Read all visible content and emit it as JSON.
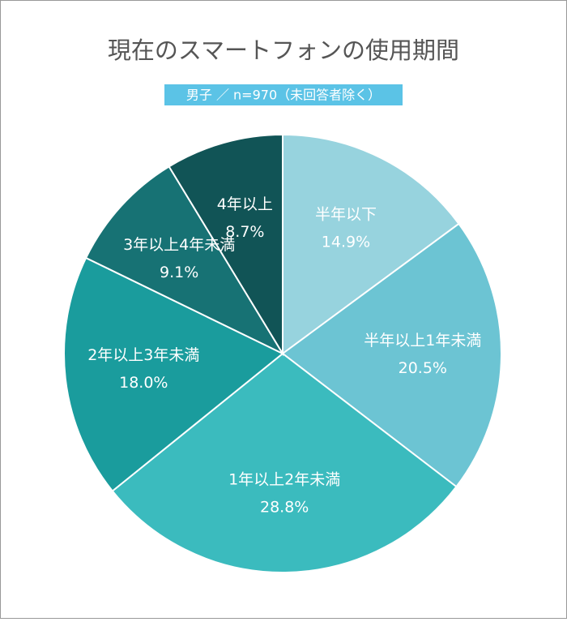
{
  "chart_data": {
    "type": "pie",
    "title": "現在のスマートフォンの使用期間",
    "subtitle": "男子 ／ n=970（未回答者除く）",
    "categories": [
      "半年以下",
      "半年以上1年未満",
      "1年以上2年未満",
      "2年以上3年未満",
      "3年以上4年未満",
      "4年以上"
    ],
    "values": [
      14.9,
      20.5,
      28.8,
      18.0,
      9.1,
      8.7
    ],
    "value_labels": [
      "14.9%",
      "20.5%",
      "28.8%",
      "18.0%",
      "9.1%",
      "8.7%"
    ],
    "colors": [
      "#97d3de",
      "#6cc4d3",
      "#3bbbbe",
      "#1a9c9d",
      "#177274",
      "#115456"
    ]
  }
}
